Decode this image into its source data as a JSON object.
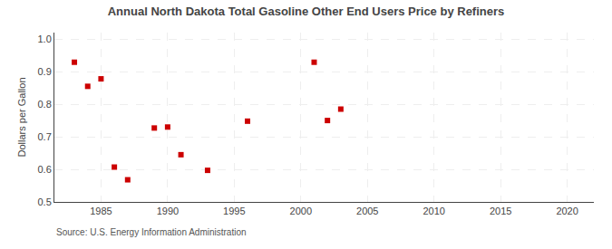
{
  "chart_data": {
    "type": "scatter",
    "title": "Annual North Dakota Total Gasoline Other End Users Price by Refiners",
    "ylabel": "Dollars per Gallon",
    "annotations": [
      "Source: U.S. Energy Information Administration"
    ],
    "x": [
      1983,
      1984,
      1985,
      1986,
      1987,
      1989,
      1990,
      1991,
      1993,
      1996,
      2001,
      2002,
      2003
    ],
    "values": [
      0.929,
      0.855,
      0.878,
      0.607,
      0.568,
      0.727,
      0.73,
      0.645,
      0.597,
      0.748,
      0.929,
      0.75,
      0.785
    ],
    "color": "#cc0000",
    "marker": "square",
    "xlim": [
      1981.5,
      2022
    ],
    "xticks": [
      1985,
      1990,
      1995,
      2000,
      2005,
      2010,
      2015,
      2020
    ],
    "ylim": [
      0.5,
      1.02
    ],
    "yticks": [
      0.5,
      0.6,
      0.7,
      0.8,
      0.9,
      {
        "value": 1.0,
        "label": "1.0"
      }
    ],
    "grid": true
  }
}
